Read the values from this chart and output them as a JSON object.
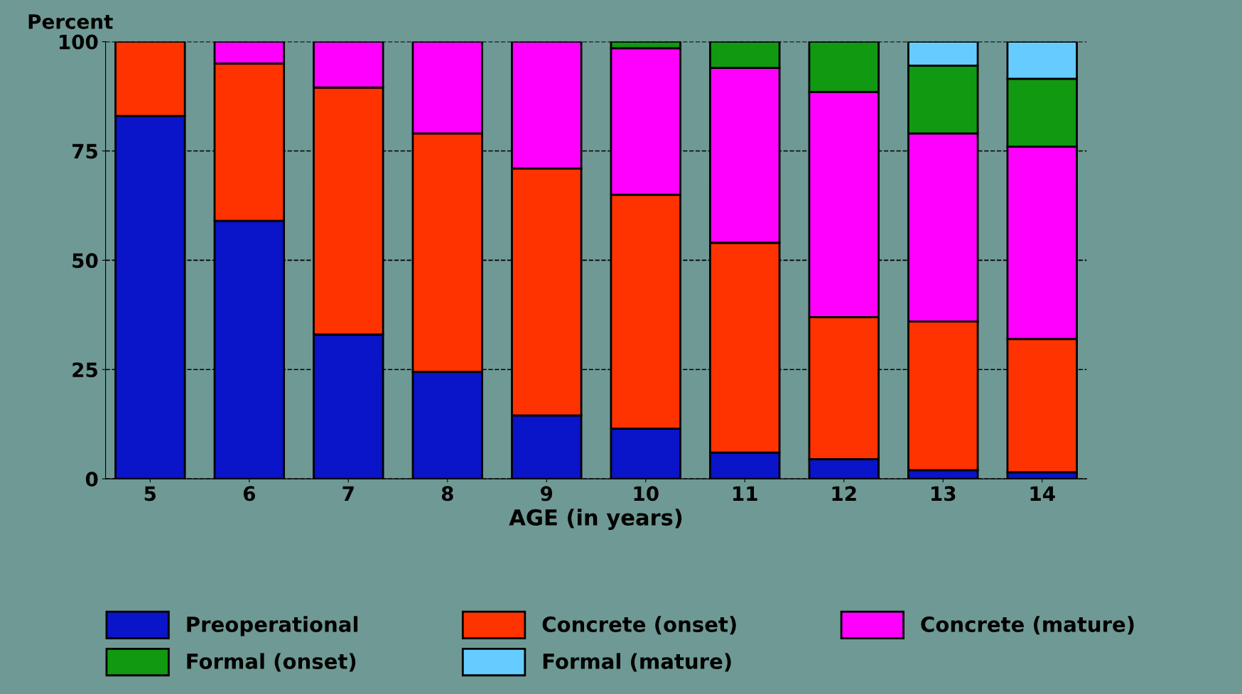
{
  "chart_data": {
    "type": "bar",
    "stacked": true,
    "ylabel": "Percent",
    "xlabel": "AGE (in years)",
    "categories": [
      "5",
      "6",
      "7",
      "8",
      "9",
      "10",
      "11",
      "12",
      "13",
      "14"
    ],
    "series": [
      {
        "name": "Preoperational",
        "color": "#0a14c8",
        "values": [
          83,
          59,
          33,
          24.5,
          14.5,
          11.5,
          6,
          4.5,
          2,
          1.5
        ]
      },
      {
        "name": "Concrete (onset)",
        "color": "#ff3300",
        "values": [
          17,
          36,
          56.5,
          54.5,
          56.5,
          53.5,
          48,
          32.5,
          34,
          30.5
        ]
      },
      {
        "name": "Concrete (mature)",
        "color": "#ff00ff",
        "values": [
          null,
          5,
          10.5,
          21,
          29,
          33.5,
          40,
          51.5,
          43,
          44
        ]
      },
      {
        "name": "Formal (onset)",
        "color": "#119911",
        "values": [
          null,
          null,
          null,
          null,
          null,
          1.5,
          6,
          11.5,
          15.5,
          15.5
        ]
      },
      {
        "name": "Formal (mature)",
        "color": "#66ccff",
        "values": [
          null,
          null,
          null,
          null,
          null,
          null,
          null,
          null,
          5.5,
          8.5
        ]
      }
    ],
    "ylim": [
      0,
      100
    ],
    "yticks": [
      0,
      25,
      50,
      75,
      100
    ],
    "grid": "y",
    "legend": "bottom"
  }
}
